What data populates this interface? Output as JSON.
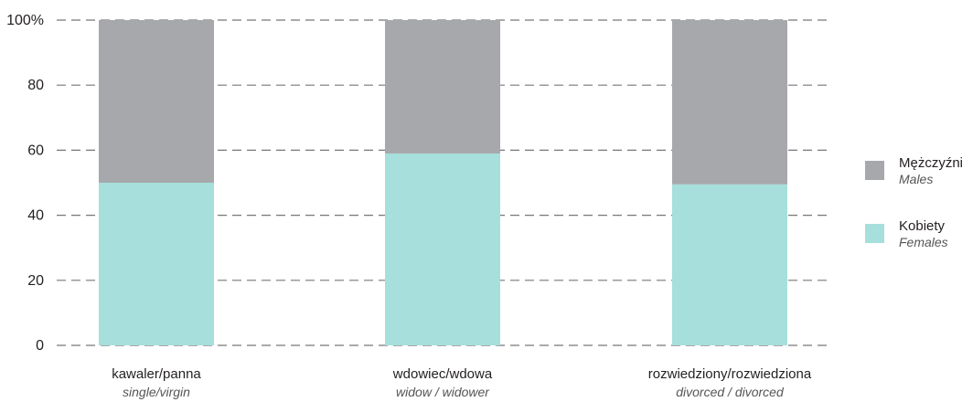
{
  "chart_data": {
    "type": "bar",
    "stacked": true,
    "percent": true,
    "categories": [
      {
        "label": "kawaler/panna",
        "sublabel": "single/virgin"
      },
      {
        "label": "wdowiec/wdowa",
        "sublabel": "widow / widower"
      },
      {
        "label": "rozwiedziony/rozwiedziona",
        "sublabel": "divorced / divorced"
      }
    ],
    "series": [
      {
        "name": "Kobiety",
        "subname": "Females",
        "color": "#a6dfdc",
        "values": [
          50,
          59,
          49.5
        ]
      },
      {
        "name": "Mężczyźni",
        "subname": "Males",
        "color": "#a7a8ab",
        "values": [
          50,
          41,
          50.5
        ]
      }
    ],
    "ylim": [
      0,
      100
    ],
    "yticks": [
      {
        "value": 0,
        "label": "0"
      },
      {
        "value": 20,
        "label": "20"
      },
      {
        "value": 40,
        "label": "40"
      },
      {
        "value": 60,
        "label": "60"
      },
      {
        "value": 80,
        "label": "80"
      },
      {
        "value": 100,
        "label": "100%"
      }
    ],
    "grid": true,
    "legend_position": "right"
  }
}
